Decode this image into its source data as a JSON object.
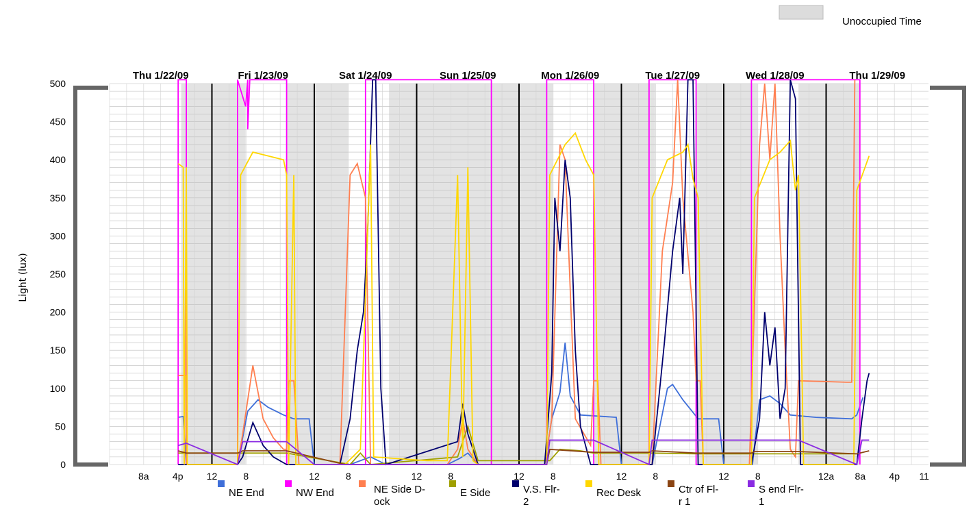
{
  "chart_data": {
    "type": "line",
    "ylabel": "Light (lux)",
    "ylim": [
      0,
      500
    ],
    "yticks": [
      0,
      50,
      100,
      150,
      200,
      250,
      300,
      350,
      400,
      450,
      500
    ],
    "x_range_days": [
      "Thu 1/22/09",
      "Thu 1/29/09"
    ],
    "day_labels": [
      "Thu 1/22/09",
      "Fri 1/23/09",
      "Sat 1/24/09",
      "Sun 1/25/09",
      "Mon 1/26/09",
      "Tue 1/27/09",
      "Wed 1/28/09",
      "Thu 1/29/09"
    ],
    "x_tick_labels": [
      {
        "label": "8a",
        "day": 0.333
      },
      {
        "label": "4p",
        "day": 0.667
      },
      {
        "label": "12",
        "day": 1.0
      },
      {
        "label": "8",
        "day": 1.333
      },
      {
        "label": "12",
        "day": 2.0
      },
      {
        "label": "8",
        "day": 2.333
      },
      {
        "label": "12",
        "day": 3.0
      },
      {
        "label": "8",
        "day": 3.333
      },
      {
        "label": "12",
        "day": 4.0
      },
      {
        "label": "8",
        "day": 4.333
      },
      {
        "label": "12",
        "day": 5.0
      },
      {
        "label": "8",
        "day": 5.333
      },
      {
        "label": "12",
        "day": 6.0
      },
      {
        "label": "8",
        "day": 6.333
      },
      {
        "label": "12a",
        "day": 7.0
      },
      {
        "label": "8a",
        "day": 7.333
      },
      {
        "label": "4p",
        "day": 7.667
      },
      {
        "label": "11",
        "day": 7.958
      }
    ],
    "unoccupied_legend": "Unoccupied Time",
    "unoccupied_bands_days": [
      [
        0.7,
        1.33
      ],
      [
        1.73,
        2.33
      ],
      [
        2.73,
        3.33
      ],
      [
        3.33,
        3.71
      ],
      [
        3.71,
        4.33
      ],
      [
        4.73,
        5.33
      ],
      [
        5.73,
        6.33
      ],
      [
        6.73,
        7.33
      ]
    ],
    "series": [
      {
        "name": "NE End",
        "color": "#3f6fd9",
        "points": [
          [
            0.67,
            62
          ],
          [
            0.72,
            63
          ],
          [
            0.75,
            0
          ],
          [
            1.25,
            0
          ],
          [
            1.35,
            70
          ],
          [
            1.45,
            85
          ],
          [
            1.55,
            75
          ],
          [
            1.7,
            65
          ],
          [
            1.8,
            60
          ],
          [
            1.95,
            60
          ],
          [
            2.0,
            0
          ],
          [
            2.35,
            0
          ],
          [
            2.45,
            5
          ],
          [
            2.55,
            10
          ],
          [
            2.7,
            0
          ],
          [
            3.3,
            0
          ],
          [
            3.42,
            8
          ],
          [
            3.5,
            15
          ],
          [
            3.6,
            0
          ],
          [
            4.25,
            0
          ],
          [
            4.32,
            60
          ],
          [
            4.4,
            95
          ],
          [
            4.45,
            160
          ],
          [
            4.5,
            90
          ],
          [
            4.6,
            65
          ],
          [
            4.95,
            62
          ],
          [
            5.0,
            0
          ],
          [
            5.3,
            0
          ],
          [
            5.45,
            100
          ],
          [
            5.5,
            105
          ],
          [
            5.6,
            85
          ],
          [
            5.75,
            60
          ],
          [
            5.95,
            60
          ],
          [
            6.0,
            0
          ],
          [
            6.28,
            0
          ],
          [
            6.35,
            85
          ],
          [
            6.45,
            90
          ],
          [
            6.55,
            80
          ],
          [
            6.65,
            65
          ],
          [
            6.9,
            62
          ],
          [
            7.25,
            60
          ],
          [
            7.3,
            65
          ],
          [
            7.36,
            88
          ]
        ]
      },
      {
        "name": "NW End",
        "color": "#ff00ff",
        "points": [
          [
            0.67,
            0
          ],
          [
            0.67,
            505
          ],
          [
            0.75,
            505
          ],
          [
            0.75,
            0
          ],
          [
            1.25,
            0
          ],
          [
            1.25,
            505
          ],
          [
            1.33,
            470
          ],
          [
            1.35,
            505
          ],
          [
            1.35,
            440
          ],
          [
            1.37,
            505
          ],
          [
            1.73,
            505
          ],
          [
            1.73,
            0
          ],
          [
            2.5,
            0
          ],
          [
            2.5,
            505
          ],
          [
            3.73,
            505
          ],
          [
            3.73,
            0
          ],
          [
            4.27,
            0
          ],
          [
            4.27,
            505
          ],
          [
            4.73,
            505
          ],
          [
            4.73,
            0
          ],
          [
            5.27,
            0
          ],
          [
            5.27,
            505
          ],
          [
            5.73,
            505
          ],
          [
            5.73,
            0
          ],
          [
            6.27,
            0
          ],
          [
            6.27,
            505
          ],
          [
            7.33,
            505
          ],
          [
            7.33,
            0
          ]
        ]
      },
      {
        "name": "NE Side D-ock",
        "color": "#ff7f50",
        "points": [
          [
            0.67,
            117
          ],
          [
            0.75,
            117
          ],
          [
            0.75,
            0
          ],
          [
            1.25,
            0
          ],
          [
            1.3,
            40
          ],
          [
            1.4,
            130
          ],
          [
            1.5,
            60
          ],
          [
            1.6,
            35
          ],
          [
            1.7,
            20
          ],
          [
            1.73,
            20
          ],
          [
            1.75,
            110
          ],
          [
            1.8,
            110
          ],
          [
            1.85,
            0
          ],
          [
            2.25,
            0
          ],
          [
            2.35,
            380
          ],
          [
            2.42,
            395
          ],
          [
            2.5,
            350
          ],
          [
            2.55,
            0
          ],
          [
            3.3,
            0
          ],
          [
            3.4,
            20
          ],
          [
            3.45,
            60
          ],
          [
            3.5,
            20
          ],
          [
            3.6,
            0
          ],
          [
            4.25,
            0
          ],
          [
            4.32,
            60
          ],
          [
            4.4,
            420
          ],
          [
            4.45,
            400
          ],
          [
            4.55,
            60
          ],
          [
            4.7,
            25
          ],
          [
            4.73,
            110
          ],
          [
            4.77,
            110
          ],
          [
            4.8,
            0
          ],
          [
            5.3,
            0
          ],
          [
            5.4,
            280
          ],
          [
            5.5,
            370
          ],
          [
            5.55,
            505
          ],
          [
            5.6,
            350
          ],
          [
            5.7,
            200
          ],
          [
            5.73,
            110
          ],
          [
            5.77,
            110
          ],
          [
            5.8,
            0
          ],
          [
            6.25,
            0
          ],
          [
            6.35,
            420
          ],
          [
            6.4,
            500
          ],
          [
            6.45,
            400
          ],
          [
            6.5,
            500
          ],
          [
            6.55,
            300
          ],
          [
            6.6,
            150
          ],
          [
            6.65,
            20
          ],
          [
            6.7,
            10
          ],
          [
            6.73,
            110
          ],
          [
            7.2,
            108
          ],
          [
            7.25,
            108
          ],
          [
            7.28,
            505
          ]
        ]
      },
      {
        "name": "E Side",
        "color": "#a0a000",
        "points": [
          [
            0.67,
            15
          ],
          [
            0.75,
            15
          ],
          [
            1.3,
            15
          ],
          [
            1.73,
            15
          ],
          [
            2.35,
            0
          ],
          [
            2.45,
            15
          ],
          [
            2.55,
            0
          ],
          [
            3.4,
            10
          ],
          [
            3.5,
            50
          ],
          [
            3.6,
            5
          ],
          [
            4.3,
            5
          ],
          [
            4.4,
            20
          ],
          [
            4.6,
            18
          ],
          [
            4.73,
            15
          ],
          [
            5.3,
            15
          ],
          [
            5.73,
            14
          ],
          [
            6.3,
            14
          ],
          [
            6.73,
            14
          ],
          [
            7.33,
            14
          ]
        ]
      },
      {
        "name": "V.S. Flr-2",
        "color": "#00006e",
        "points": [
          [
            0.67,
            0
          ],
          [
            1.25,
            0
          ],
          [
            1.3,
            10
          ],
          [
            1.4,
            55
          ],
          [
            1.5,
            25
          ],
          [
            1.6,
            10
          ],
          [
            1.73,
            0
          ],
          [
            2.25,
            0
          ],
          [
            2.35,
            60
          ],
          [
            2.42,
            150
          ],
          [
            2.48,
            200
          ],
          [
            2.52,
            300
          ],
          [
            2.57,
            505
          ],
          [
            2.6,
            505
          ],
          [
            2.65,
            100
          ],
          [
            2.7,
            0
          ],
          [
            3.4,
            30
          ],
          [
            3.45,
            80
          ],
          [
            3.5,
            40
          ],
          [
            3.6,
            0
          ],
          [
            4.25,
            0
          ],
          [
            4.32,
            120
          ],
          [
            4.35,
            350
          ],
          [
            4.4,
            280
          ],
          [
            4.45,
            400
          ],
          [
            4.5,
            350
          ],
          [
            4.55,
            150
          ],
          [
            4.6,
            50
          ],
          [
            4.7,
            0
          ],
          [
            5.3,
            0
          ],
          [
            5.42,
            160
          ],
          [
            5.5,
            280
          ],
          [
            5.57,
            350
          ],
          [
            5.6,
            250
          ],
          [
            5.65,
            505
          ],
          [
            5.7,
            505
          ],
          [
            5.75,
            0
          ],
          [
            6.27,
            0
          ],
          [
            6.35,
            60
          ],
          [
            6.4,
            200
          ],
          [
            6.45,
            130
          ],
          [
            6.5,
            180
          ],
          [
            6.55,
            60
          ],
          [
            6.6,
            100
          ],
          [
            6.65,
            505
          ],
          [
            6.7,
            480
          ],
          [
            6.75,
            0
          ],
          [
            7.3,
            0
          ],
          [
            7.35,
            60
          ],
          [
            7.4,
            110
          ],
          [
            7.42,
            120
          ]
        ]
      },
      {
        "name": "Rec Desk",
        "color": "#ffd700",
        "points": [
          [
            0.67,
            395
          ],
          [
            0.72,
            390
          ],
          [
            0.73,
            0
          ],
          [
            0.75,
            390
          ],
          [
            0.76,
            0
          ],
          [
            1.25,
            0
          ],
          [
            1.28,
            380
          ],
          [
            1.4,
            410
          ],
          [
            1.55,
            405
          ],
          [
            1.7,
            400
          ],
          [
            1.73,
            380
          ],
          [
            1.75,
            0
          ],
          [
            1.8,
            380
          ],
          [
            1.82,
            0
          ],
          [
            2.3,
            0
          ],
          [
            2.45,
            20
          ],
          [
            2.55,
            420
          ],
          [
            2.58,
            10
          ],
          [
            3.1,
            5
          ],
          [
            3.3,
            5
          ],
          [
            3.4,
            380
          ],
          [
            3.45,
            10
          ],
          [
            3.5,
            390
          ],
          [
            3.55,
            5
          ],
          [
            3.6,
            0
          ],
          [
            4.27,
            0
          ],
          [
            4.3,
            380
          ],
          [
            4.45,
            420
          ],
          [
            4.55,
            435
          ],
          [
            4.65,
            400
          ],
          [
            4.73,
            380
          ],
          [
            4.78,
            0
          ],
          [
            5.27,
            0
          ],
          [
            5.3,
            350
          ],
          [
            5.45,
            400
          ],
          [
            5.6,
            410
          ],
          [
            5.65,
            420
          ],
          [
            5.7,
            375
          ],
          [
            5.75,
            350
          ],
          [
            5.8,
            0
          ],
          [
            6.27,
            0
          ],
          [
            6.3,
            350
          ],
          [
            6.45,
            400
          ],
          [
            6.55,
            410
          ],
          [
            6.65,
            425
          ],
          [
            6.7,
            360
          ],
          [
            6.73,
            380
          ],
          [
            6.78,
            0
          ],
          [
            7.27,
            0
          ],
          [
            7.3,
            360
          ],
          [
            7.42,
            405
          ]
        ]
      },
      {
        "name": "Ctr of Fl-r 1",
        "color": "#8b4513",
        "points": [
          [
            0.67,
            18
          ],
          [
            0.75,
            15
          ],
          [
            1.25,
            15
          ],
          [
            1.3,
            18
          ],
          [
            1.73,
            18
          ],
          [
            2.3,
            0
          ],
          [
            2.5,
            0
          ],
          [
            4.27,
            0
          ],
          [
            4.3,
            20
          ],
          [
            4.73,
            16
          ],
          [
            5.27,
            16
          ],
          [
            5.3,
            18
          ],
          [
            5.73,
            15
          ],
          [
            6.27,
            15
          ],
          [
            6.3,
            17
          ],
          [
            6.73,
            17
          ],
          [
            7.3,
            14
          ],
          [
            7.42,
            18
          ]
        ]
      },
      {
        "name": "S end Flr-1",
        "color": "#8a2be2",
        "points": [
          [
            0.67,
            25
          ],
          [
            0.75,
            28
          ],
          [
            1.25,
            0
          ],
          [
            1.3,
            30
          ],
          [
            1.73,
            30
          ],
          [
            2.0,
            0
          ],
          [
            4.27,
            0
          ],
          [
            4.3,
            32
          ],
          [
            4.73,
            32
          ],
          [
            5.27,
            0
          ],
          [
            5.3,
            32
          ],
          [
            5.73,
            32
          ],
          [
            6.27,
            32
          ],
          [
            6.73,
            32
          ],
          [
            7.3,
            0
          ],
          [
            7.35,
            32
          ],
          [
            7.42,
            32
          ]
        ]
      }
    ]
  }
}
